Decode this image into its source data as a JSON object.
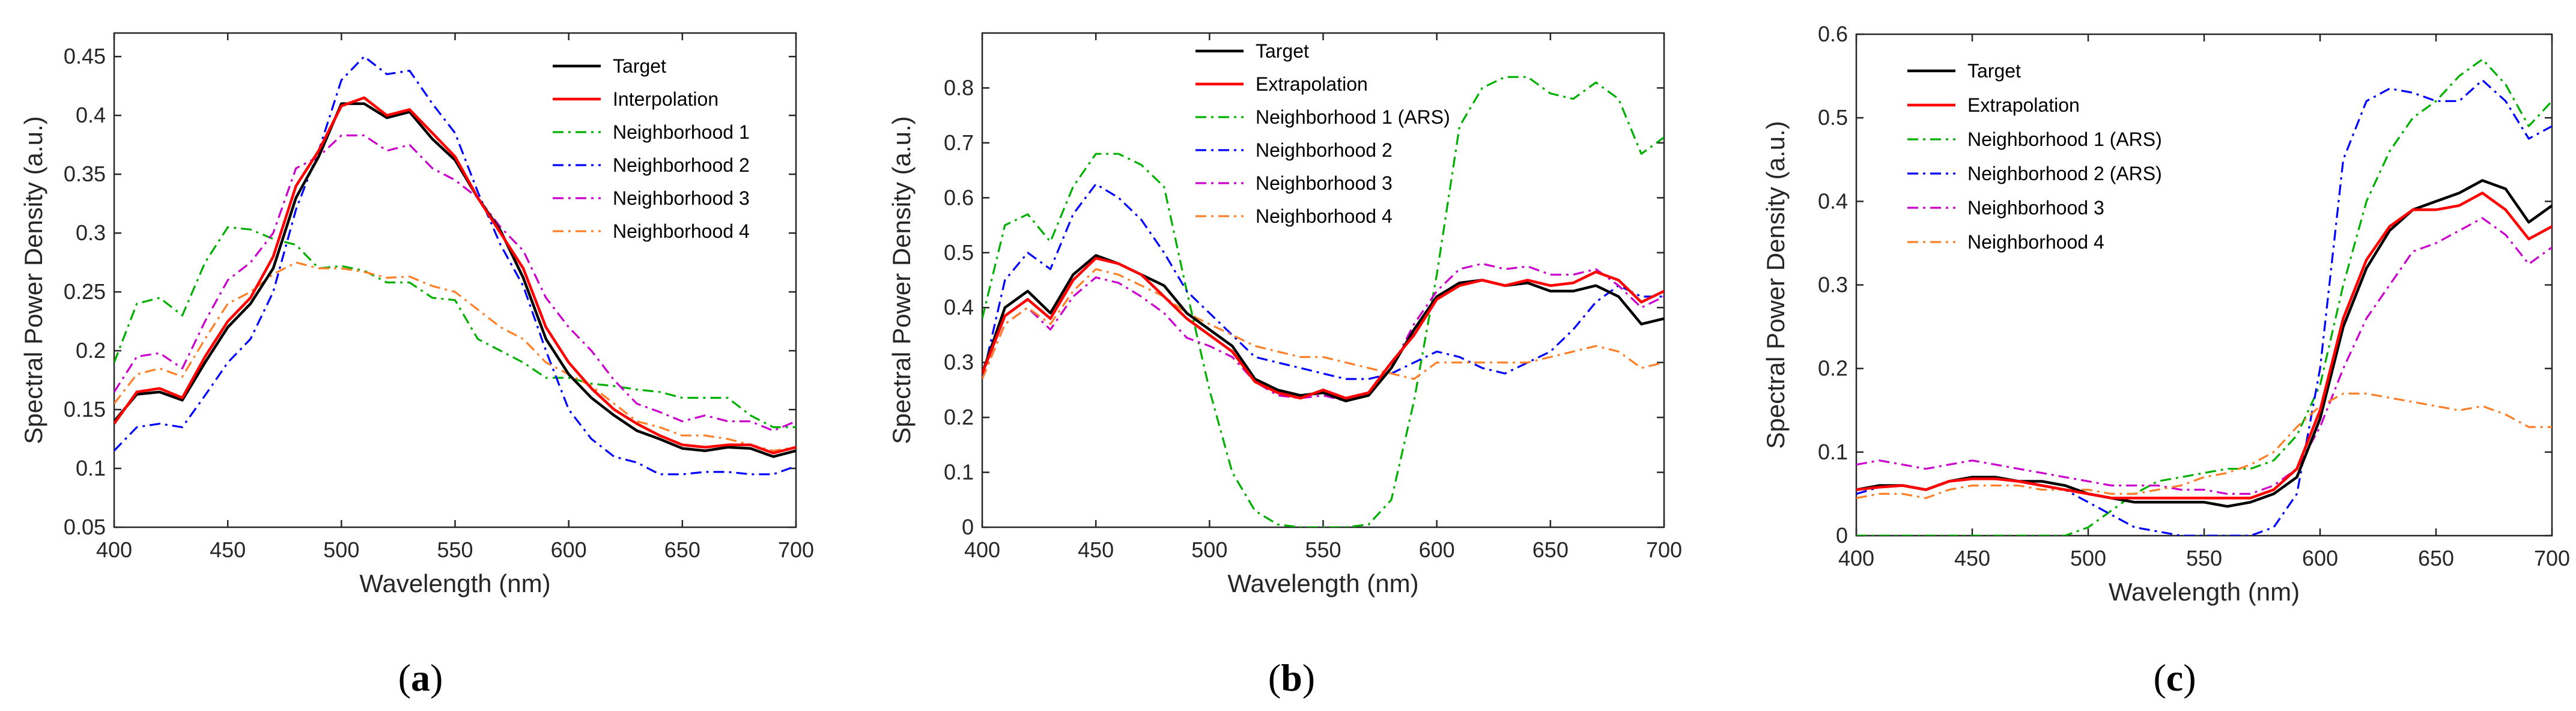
{
  "chart_data": [
    {
      "type": "line",
      "panel": "a",
      "caption_open": "(",
      "caption_letter": "a",
      "caption_close": ")",
      "xlabel": "Wavelength (nm)",
      "ylabel": "Spectral Power Density (a.u.)",
      "xlim": [
        400,
        700
      ],
      "ylim": [
        0.05,
        0.47
      ],
      "xticks": [
        400,
        450,
        500,
        550,
        600,
        650,
        700
      ],
      "xtick_labels": [
        "400",
        "450",
        "500",
        "550",
        "600",
        "650",
        "700"
      ],
      "yticks": [
        0.05,
        0.1,
        0.15,
        0.2,
        0.25,
        0.3,
        0.35,
        0.4,
        0.45
      ],
      "ytick_labels": [
        "0.05",
        "0.1",
        "0.15",
        "0.2",
        "0.25",
        "0.3",
        "0.35",
        "0.4",
        "0.45"
      ],
      "legend_position": "top-right",
      "x": [
        400,
        410,
        420,
        430,
        440,
        450,
        460,
        470,
        480,
        490,
        500,
        510,
        520,
        530,
        540,
        550,
        560,
        570,
        580,
        590,
        600,
        610,
        620,
        630,
        640,
        650,
        660,
        670,
        680,
        690,
        700
      ],
      "series": [
        {
          "name": "Target",
          "color": "#000000",
          "style": "solid",
          "values": [
            0.14,
            0.163,
            0.165,
            0.158,
            0.19,
            0.22,
            0.24,
            0.27,
            0.33,
            0.365,
            0.41,
            0.41,
            0.398,
            0.403,
            0.38,
            0.362,
            0.33,
            0.302,
            0.262,
            0.21,
            0.18,
            0.16,
            0.145,
            0.132,
            0.125,
            0.117,
            0.115,
            0.118,
            0.117,
            0.11,
            0.115
          ]
        },
        {
          "name": "Interpolation",
          "color": "#ff0000",
          "style": "solid",
          "values": [
            0.138,
            0.165,
            0.168,
            0.16,
            0.195,
            0.225,
            0.245,
            0.28,
            0.34,
            0.37,
            0.408,
            0.415,
            0.4,
            0.405,
            0.385,
            0.365,
            0.33,
            0.3,
            0.27,
            0.22,
            0.19,
            0.168,
            0.15,
            0.138,
            0.128,
            0.12,
            0.118,
            0.12,
            0.12,
            0.113,
            0.118
          ]
        },
        {
          "name": "Neighborhood 1",
          "color": "#00b000",
          "style": "dashdot",
          "values": [
            0.19,
            0.24,
            0.245,
            0.23,
            0.275,
            0.305,
            0.303,
            0.295,
            0.29,
            0.27,
            0.272,
            0.268,
            0.258,
            0.258,
            0.245,
            0.243,
            0.21,
            0.2,
            0.19,
            0.177,
            0.177,
            0.172,
            0.17,
            0.167,
            0.165,
            0.16,
            0.16,
            0.16,
            0.145,
            0.135,
            0.135
          ]
        },
        {
          "name": "Neighborhood 2",
          "color": "#0000ff",
          "style": "dashdot",
          "values": [
            0.115,
            0.135,
            0.138,
            0.135,
            0.162,
            0.19,
            0.21,
            0.25,
            0.32,
            0.37,
            0.43,
            0.45,
            0.435,
            0.438,
            0.41,
            0.385,
            0.335,
            0.29,
            0.255,
            0.2,
            0.15,
            0.125,
            0.11,
            0.105,
            0.095,
            0.095,
            0.097,
            0.097,
            0.095,
            0.095,
            0.102
          ]
        },
        {
          "name": "Neighborhood 3",
          "color": "#cc00cc",
          "style": "dashdot",
          "values": [
            0.165,
            0.195,
            0.198,
            0.185,
            0.225,
            0.26,
            0.275,
            0.3,
            0.355,
            0.365,
            0.383,
            0.383,
            0.37,
            0.375,
            0.355,
            0.345,
            0.33,
            0.305,
            0.285,
            0.245,
            0.22,
            0.2,
            0.175,
            0.155,
            0.148,
            0.14,
            0.145,
            0.14,
            0.14,
            0.132,
            0.14
          ]
        },
        {
          "name": "Neighborhood 4",
          "color": "#ff7f27",
          "style": "dashdot",
          "values": [
            0.155,
            0.18,
            0.185,
            0.178,
            0.21,
            0.24,
            0.25,
            0.265,
            0.275,
            0.27,
            0.27,
            0.267,
            0.262,
            0.263,
            0.255,
            0.25,
            0.235,
            0.22,
            0.21,
            0.19,
            0.18,
            0.17,
            0.155,
            0.14,
            0.135,
            0.128,
            0.128,
            0.125,
            0.12,
            0.115,
            0.118
          ]
        }
      ]
    },
    {
      "type": "line",
      "panel": "b",
      "caption_open": "(",
      "caption_letter": "b",
      "caption_close": ")",
      "xlabel": "Wavelength (nm)",
      "ylabel": "Spectral Power Density (a.u.)",
      "xlim": [
        400,
        700
      ],
      "ylim": [
        0,
        0.9
      ],
      "xticks": [
        400,
        450,
        500,
        550,
        600,
        650,
        700
      ],
      "xtick_labels": [
        "400",
        "450",
        "500",
        "550",
        "600",
        "650",
        "700"
      ],
      "yticks": [
        0,
        0.1,
        0.2,
        0.3,
        0.4,
        0.5,
        0.6,
        0.7,
        0.8
      ],
      "ytick_labels": [
        "0",
        "0.1",
        "0.2",
        "0.3",
        "0.4",
        "0.5",
        "0.6",
        "0.7",
        "0.8"
      ],
      "legend_position": "top-right",
      "x": [
        400,
        410,
        420,
        430,
        440,
        450,
        460,
        470,
        480,
        490,
        500,
        510,
        520,
        530,
        540,
        550,
        560,
        570,
        580,
        590,
        600,
        610,
        620,
        630,
        640,
        650,
        660,
        670,
        680,
        690,
        700
      ],
      "series": [
        {
          "name": "Target",
          "color": "#000000",
          "style": "solid",
          "values": [
            0.28,
            0.4,
            0.43,
            0.39,
            0.46,
            0.495,
            0.48,
            0.46,
            0.44,
            0.39,
            0.36,
            0.33,
            0.27,
            0.25,
            0.24,
            0.245,
            0.23,
            0.24,
            0.29,
            0.36,
            0.42,
            0.445,
            0.45,
            0.44,
            0.445,
            0.43,
            0.43,
            0.44,
            0.42,
            0.37,
            0.38
          ]
        },
        {
          "name": "Extrapolation",
          "color": "#ff0000",
          "style": "solid",
          "values": [
            0.28,
            0.385,
            0.415,
            0.38,
            0.45,
            0.49,
            0.48,
            0.46,
            0.42,
            0.38,
            0.35,
            0.32,
            0.265,
            0.245,
            0.235,
            0.25,
            0.235,
            0.245,
            0.3,
            0.35,
            0.415,
            0.44,
            0.45,
            0.44,
            0.45,
            0.44,
            0.445,
            0.465,
            0.45,
            0.41,
            0.43
          ]
        },
        {
          "name": "Neighborhood 1 (ARS)",
          "color": "#00b000",
          "style": "dashdot",
          "values": [
            0.38,
            0.55,
            0.57,
            0.52,
            0.62,
            0.68,
            0.68,
            0.66,
            0.62,
            0.43,
            0.25,
            0.1,
            0.03,
            0.005,
            0.0,
            0.0,
            0.0,
            0.005,
            0.05,
            0.23,
            0.46,
            0.73,
            0.8,
            0.82,
            0.82,
            0.79,
            0.78,
            0.81,
            0.78,
            0.68,
            0.71
          ]
        },
        {
          "name": "Neighborhood 2",
          "color": "#0000ff",
          "style": "dashdot",
          "values": [
            0.27,
            0.45,
            0.5,
            0.47,
            0.57,
            0.625,
            0.6,
            0.56,
            0.5,
            0.43,
            0.39,
            0.35,
            0.31,
            0.3,
            0.29,
            0.28,
            0.27,
            0.27,
            0.28,
            0.3,
            0.32,
            0.31,
            0.29,
            0.28,
            0.3,
            0.32,
            0.36,
            0.41,
            0.44,
            0.42,
            0.42
          ]
        },
        {
          "name": "Neighborhood 3",
          "color": "#cc00cc",
          "style": "dashdot",
          "values": [
            0.27,
            0.37,
            0.4,
            0.36,
            0.42,
            0.455,
            0.445,
            0.42,
            0.39,
            0.345,
            0.33,
            0.31,
            0.265,
            0.24,
            0.235,
            0.24,
            0.23,
            0.24,
            0.29,
            0.37,
            0.43,
            0.47,
            0.48,
            0.47,
            0.475,
            0.46,
            0.46,
            0.47,
            0.44,
            0.4,
            0.42
          ]
        },
        {
          "name": "Neighborhood 4",
          "color": "#ff7f27",
          "style": "dashdot",
          "values": [
            0.27,
            0.37,
            0.4,
            0.37,
            0.43,
            0.47,
            0.46,
            0.44,
            0.42,
            0.39,
            0.37,
            0.35,
            0.33,
            0.32,
            0.31,
            0.31,
            0.3,
            0.29,
            0.28,
            0.27,
            0.3,
            0.3,
            0.3,
            0.3,
            0.3,
            0.31,
            0.32,
            0.33,
            0.32,
            0.29,
            0.3
          ]
        }
      ]
    },
    {
      "type": "line",
      "panel": "c",
      "caption_open": "(",
      "caption_letter": "c",
      "caption_close": ")",
      "xlabel": "Wavelength (nm)",
      "ylabel": "Spectral Power Density (a.u.)",
      "xlim": [
        400,
        700
      ],
      "ylim": [
        0,
        0.6
      ],
      "xticks": [
        400,
        450,
        500,
        550,
        600,
        650,
        700
      ],
      "xtick_labels": [
        "400",
        "450",
        "500",
        "550",
        "600",
        "650",
        "700"
      ],
      "yticks": [
        0,
        0.1,
        0.2,
        0.3,
        0.4,
        0.5,
        0.6
      ],
      "ytick_labels": [
        "0",
        "0.1",
        "0.2",
        "0.3",
        "0.4",
        "0.5",
        "0.6"
      ],
      "legend_position": "top-left",
      "x": [
        400,
        410,
        420,
        430,
        440,
        450,
        460,
        470,
        480,
        490,
        500,
        510,
        520,
        530,
        540,
        550,
        560,
        570,
        580,
        590,
        600,
        610,
        620,
        630,
        640,
        650,
        660,
        670,
        680,
        690,
        700
      ],
      "series": [
        {
          "name": "Target",
          "color": "#000000",
          "style": "solid",
          "values": [
            0.055,
            0.06,
            0.06,
            0.055,
            0.065,
            0.07,
            0.07,
            0.065,
            0.065,
            0.06,
            0.05,
            0.045,
            0.04,
            0.04,
            0.04,
            0.04,
            0.035,
            0.04,
            0.05,
            0.07,
            0.14,
            0.25,
            0.32,
            0.365,
            0.39,
            0.4,
            0.41,
            0.425,
            0.415,
            0.375,
            0.395
          ]
        },
        {
          "name": "Extrapolation",
          "color": "#ff0000",
          "style": "solid",
          "values": [
            0.055,
            0.058,
            0.06,
            0.055,
            0.065,
            0.068,
            0.068,
            0.065,
            0.06,
            0.055,
            0.05,
            0.045,
            0.045,
            0.045,
            0.045,
            0.045,
            0.045,
            0.045,
            0.055,
            0.08,
            0.15,
            0.26,
            0.33,
            0.37,
            0.39,
            0.39,
            0.395,
            0.41,
            0.39,
            0.355,
            0.37
          ]
        },
        {
          "name": "Neighborhood 1 (ARS)",
          "color": "#00b000",
          "style": "dashdot",
          "values": [
            0.0,
            0.0,
            0.0,
            0.0,
            0.0,
            0.0,
            0.0,
            0.0,
            0.0,
            0.0,
            0.01,
            0.03,
            0.05,
            0.065,
            0.07,
            0.075,
            0.08,
            0.08,
            0.09,
            0.12,
            0.18,
            0.3,
            0.4,
            0.46,
            0.5,
            0.52,
            0.55,
            0.57,
            0.54,
            0.49,
            0.52
          ]
        },
        {
          "name": "Neighborhood 2 (ARS)",
          "color": "#0000ff",
          "style": "dashdot",
          "values": [
            0.05,
            0.058,
            0.06,
            0.055,
            0.065,
            0.07,
            0.07,
            0.065,
            0.06,
            0.055,
            0.04,
            0.025,
            0.01,
            0.005,
            0.0,
            0.0,
            0.0,
            0.0,
            0.01,
            0.05,
            0.2,
            0.45,
            0.52,
            0.535,
            0.53,
            0.52,
            0.52,
            0.545,
            0.52,
            0.475,
            0.49
          ]
        },
        {
          "name": "Neighborhood 3",
          "color": "#cc00cc",
          "style": "dashdot",
          "values": [
            0.085,
            0.09,
            0.085,
            0.08,
            0.085,
            0.09,
            0.085,
            0.08,
            0.075,
            0.07,
            0.065,
            0.06,
            0.06,
            0.06,
            0.055,
            0.055,
            0.05,
            0.05,
            0.06,
            0.08,
            0.13,
            0.2,
            0.26,
            0.3,
            0.34,
            0.35,
            0.365,
            0.38,
            0.36,
            0.325,
            0.345
          ]
        },
        {
          "name": "Neighborhood 4",
          "color": "#ff7f27",
          "style": "dashdot",
          "values": [
            0.045,
            0.05,
            0.05,
            0.045,
            0.055,
            0.06,
            0.06,
            0.06,
            0.055,
            0.055,
            0.055,
            0.05,
            0.05,
            0.055,
            0.06,
            0.07,
            0.075,
            0.085,
            0.1,
            0.13,
            0.155,
            0.17,
            0.17,
            0.165,
            0.16,
            0.155,
            0.15,
            0.155,
            0.145,
            0.13,
            0.13
          ]
        }
      ]
    }
  ]
}
